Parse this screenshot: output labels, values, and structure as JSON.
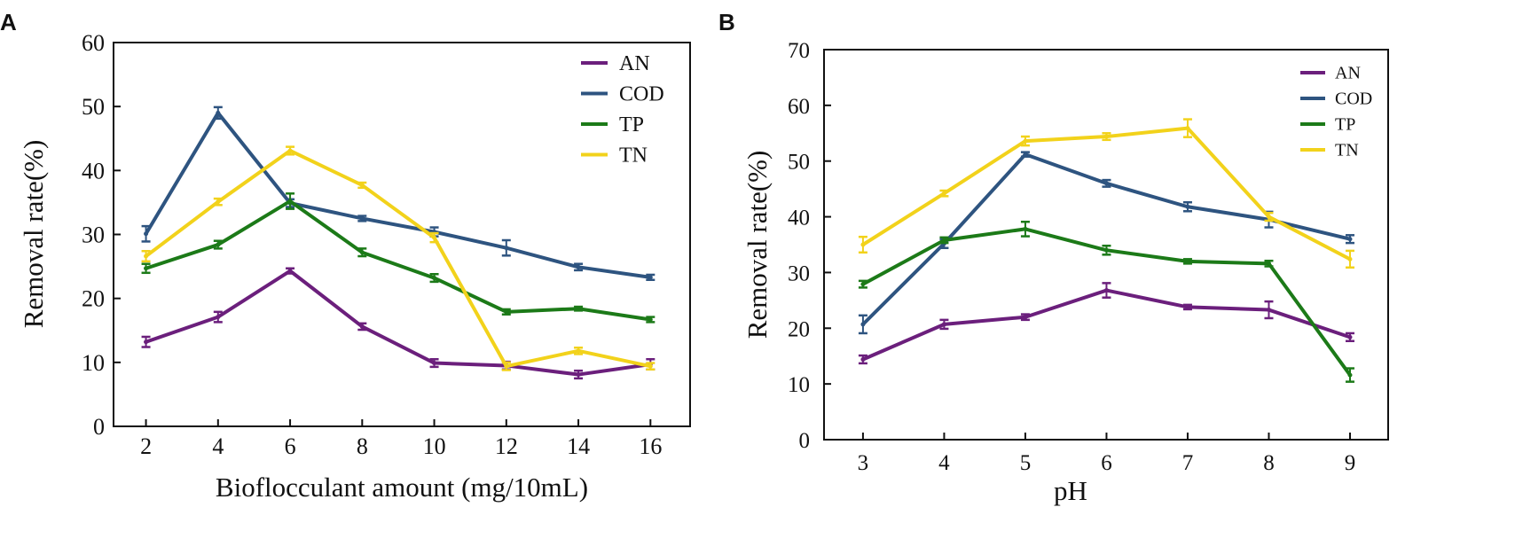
{
  "chart_data": [
    {
      "type": "line",
      "panel_label": "A",
      "title": "",
      "xlabel": "Bioflocculant amount (mg/10mL)",
      "ylabel": "Removal rate(%)",
      "x": [
        2,
        4,
        6,
        8,
        10,
        12,
        14,
        16
      ],
      "xticks": [
        "2",
        "4",
        "6",
        "8",
        "10",
        "12",
        "14",
        "16"
      ],
      "xlim": [
        1.1,
        17.1
      ],
      "ylim": [
        0,
        60
      ],
      "yticks": [
        "0",
        "10",
        "20",
        "30",
        "40",
        "50",
        "60"
      ],
      "grid": false,
      "legend_position": "top-right",
      "series": [
        {
          "name": "AN",
          "color": "#6b1f7c",
          "values": [
            13.2,
            17.1,
            24.3,
            15.6,
            9.9,
            9.5,
            8.1,
            9.7
          ],
          "errors": [
            0.8,
            0.8,
            0.4,
            0.5,
            0.6,
            0.6,
            0.6,
            0.8
          ]
        },
        {
          "name": "COD",
          "color": "#2e5480",
          "values": [
            30.1,
            49.0,
            34.9,
            32.5,
            30.4,
            27.9,
            24.9,
            23.3
          ],
          "errors": [
            1.2,
            0.9,
            0.6,
            0.4,
            0.7,
            1.2,
            0.5,
            0.4
          ]
        },
        {
          "name": "TP",
          "color": "#1c7a18",
          "values": [
            24.7,
            28.4,
            35.2,
            27.2,
            23.2,
            17.9,
            18.4,
            16.7
          ],
          "errors": [
            0.7,
            0.6,
            1.2,
            0.6,
            0.6,
            0.4,
            0.3,
            0.4
          ]
        },
        {
          "name": "TN",
          "color": "#f2d21b",
          "values": [
            26.6,
            35.1,
            43.1,
            37.7,
            29.5,
            9.4,
            11.8,
            9.4
          ],
          "errors": [
            0.8,
            0.5,
            0.6,
            0.4,
            0.7,
            0.6,
            0.5,
            0.5
          ]
        }
      ]
    },
    {
      "type": "line",
      "panel_label": "B",
      "title": "",
      "xlabel": "pH",
      "ylabel": "Removal rate(%)",
      "x": [
        3,
        4,
        5,
        6,
        7,
        8,
        9
      ],
      "xticks": [
        "3",
        "4",
        "5",
        "6",
        "7",
        "8",
        "9"
      ],
      "xlim": [
        2.52,
        9.47
      ],
      "ylim": [
        0,
        70
      ],
      "yticks": [
        "0",
        "10",
        "20",
        "30",
        "40",
        "50",
        "60",
        "70"
      ],
      "grid": false,
      "legend_position": "top-right",
      "series": [
        {
          "name": "AN",
          "color": "#6b1f7c",
          "values": [
            14.4,
            20.7,
            22.0,
            26.8,
            23.8,
            23.3,
            18.4
          ],
          "errors": [
            0.7,
            0.8,
            0.5,
            1.3,
            0.4,
            1.5,
            0.7
          ]
        },
        {
          "name": "COD",
          "color": "#2e5480",
          "values": [
            20.7,
            35.2,
            51.2,
            46.0,
            41.8,
            39.5,
            36.0
          ],
          "errors": [
            1.6,
            0.8,
            0.4,
            0.6,
            0.8,
            1.4,
            0.7
          ]
        },
        {
          "name": "TP",
          "color": "#1c7a18",
          "values": [
            27.9,
            35.8,
            37.8,
            34.0,
            32.0,
            31.6,
            11.6
          ],
          "errors": [
            0.6,
            0.5,
            1.3,
            0.8,
            0.4,
            0.5,
            1.2
          ]
        },
        {
          "name": "TN",
          "color": "#f2d21b",
          "values": [
            35.0,
            44.2,
            53.6,
            54.4,
            55.9,
            40.0,
            32.4
          ],
          "errors": [
            1.4,
            0.5,
            0.8,
            0.6,
            1.6,
            0.7,
            1.5
          ]
        }
      ]
    }
  ]
}
